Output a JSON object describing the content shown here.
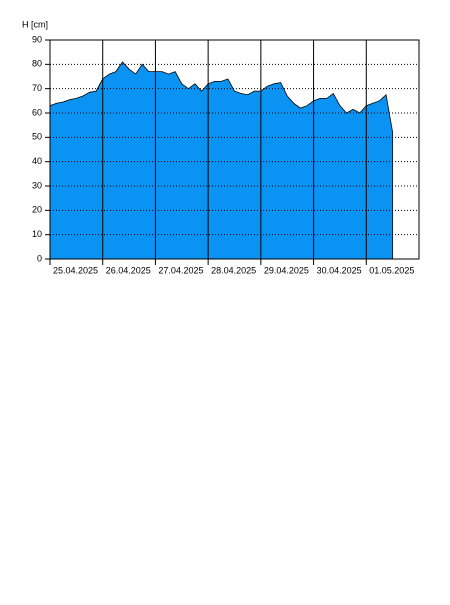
{
  "chart_data": {
    "type": "area",
    "y_label": "H [cm]",
    "categories": [
      "25.04.2025",
      null,
      null,
      null,
      null,
      null,
      null,
      null,
      "26.04.2025",
      null,
      null,
      null,
      null,
      null,
      null,
      null,
      "27.04.2025",
      null,
      null,
      null,
      null,
      null,
      null,
      null,
      "28.04.2025",
      null,
      null,
      null,
      null,
      null,
      null,
      null,
      "29.04.2025",
      null,
      null,
      null,
      null,
      null,
      null,
      null,
      "30.04.2025",
      null,
      null,
      null,
      null,
      null,
      null,
      null,
      "01.05.2025",
      null,
      null,
      null,
      null,
      null,
      null,
      null,
      null
    ],
    "values": [
      63,
      64,
      64.5,
      65.5,
      66,
      67,
      68.5,
      69,
      74,
      76,
      77,
      81,
      78,
      76,
      80,
      77,
      77,
      77,
      76,
      77,
      72,
      70,
      72,
      69,
      72,
      73,
      73,
      74,
      69,
      68,
      67.5,
      69,
      69,
      71,
      72,
      72.5,
      67,
      64,
      62,
      63,
      65,
      66,
      66,
      68,
      63,
      60,
      61.5,
      60,
      63,
      64,
      65,
      67.5,
      52,
      null,
      null,
      null,
      null
    ],
    "color": "#0a93f2",
    "ylim": [
      0,
      90
    ],
    "yticks": [
      0,
      10,
      20,
      30,
      40,
      50,
      60,
      70,
      80,
      90
    ],
    "grid": true
  }
}
